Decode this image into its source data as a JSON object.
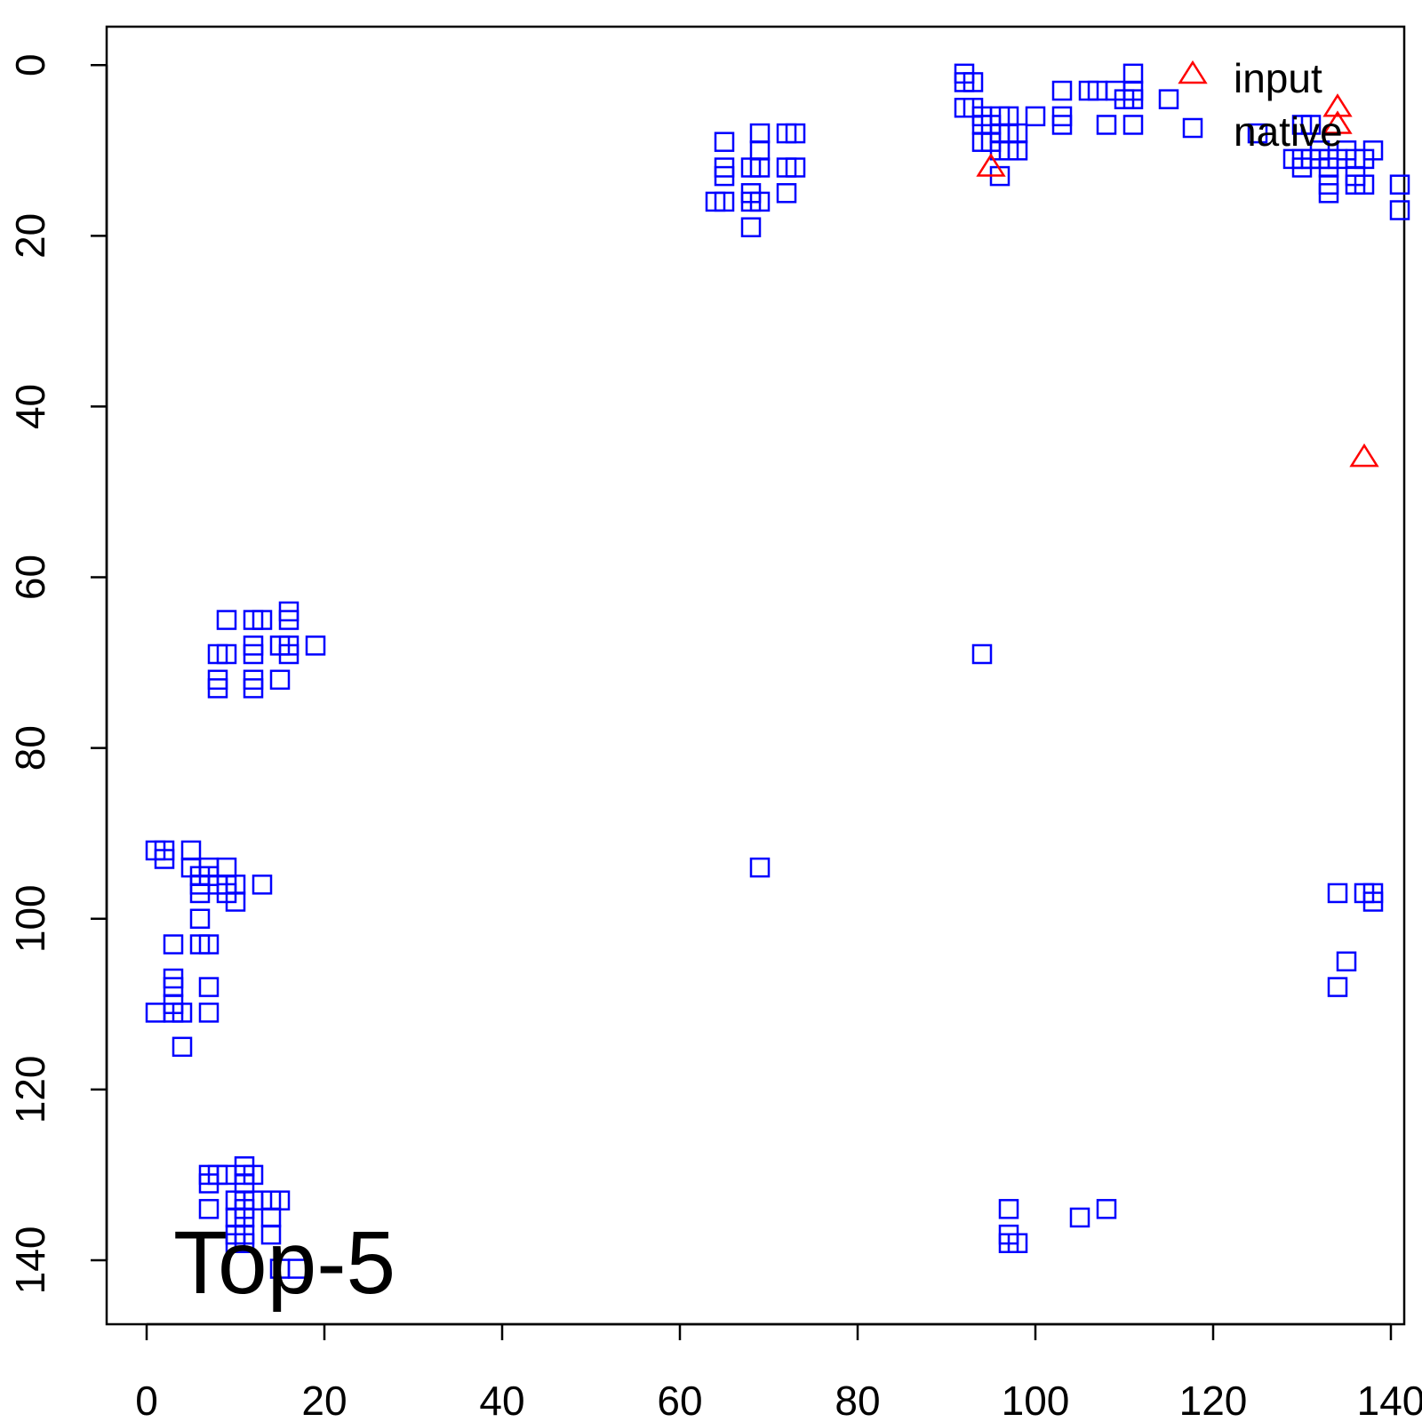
{
  "chart_data": {
    "type": "scatter",
    "annotation": "Top-5",
    "x_ticks": [
      "0",
      "20",
      "40",
      "60",
      "80",
      "100",
      "120",
      "140"
    ],
    "y_ticks": [
      "0",
      "20",
      "40",
      "60",
      "80",
      "100",
      "120",
      "140"
    ],
    "xlim": [
      -4.5,
      141.5
    ],
    "ylim": [
      147.5,
      -4.5
    ],
    "y_axis_reversed": true,
    "grid": false,
    "legend_position": "top-right",
    "series": [
      {
        "name": "input",
        "marker": "triangle",
        "color": "#ff0000",
        "points": [
          [
            134,
            5
          ],
          [
            134,
            7
          ],
          [
            95,
            12
          ],
          [
            137,
            46
          ]
        ]
      },
      {
        "name": "native",
        "marker": "square",
        "color": "#0000ff",
        "points": [
          [
            92,
            1
          ],
          [
            92,
            2
          ],
          [
            93,
            2
          ],
          [
            92,
            5
          ],
          [
            93,
            5
          ],
          [
            94,
            6
          ],
          [
            94,
            7
          ],
          [
            95,
            7
          ],
          [
            96,
            6
          ],
          [
            97,
            6
          ],
          [
            94,
            9
          ],
          [
            95,
            9
          ],
          [
            96,
            8
          ],
          [
            97,
            8
          ],
          [
            98,
            8
          ],
          [
            96,
            10
          ],
          [
            97,
            10
          ],
          [
            98,
            10
          ],
          [
            96,
            13
          ],
          [
            100,
            6
          ],
          [
            103,
            3
          ],
          [
            103,
            6
          ],
          [
            103,
            7
          ],
          [
            106,
            3
          ],
          [
            107,
            3
          ],
          [
            109,
            3
          ],
          [
            110,
            4
          ],
          [
            111,
            1
          ],
          [
            111,
            3
          ],
          [
            111,
            4
          ],
          [
            108,
            7
          ],
          [
            111,
            7
          ],
          [
            115,
            4
          ],
          [
            65,
            9
          ],
          [
            65,
            12
          ],
          [
            65,
            13
          ],
          [
            64,
            16
          ],
          [
            65,
            16
          ],
          [
            68,
            12
          ],
          [
            69,
            12
          ],
          [
            69,
            8
          ],
          [
            69,
            10
          ],
          [
            72,
            8
          ],
          [
            73,
            8
          ],
          [
            72,
            12
          ],
          [
            73,
            12
          ],
          [
            68,
            15
          ],
          [
            68,
            16
          ],
          [
            69,
            16
          ],
          [
            72,
            15
          ],
          [
            68,
            19
          ],
          [
            125,
            8
          ],
          [
            130,
            7
          ],
          [
            131,
            7
          ],
          [
            129,
            11
          ],
          [
            130,
            11
          ],
          [
            131,
            11
          ],
          [
            130,
            12
          ],
          [
            132,
            10
          ],
          [
            132,
            11
          ],
          [
            133,
            11
          ],
          [
            133,
            12
          ],
          [
            133,
            14
          ],
          [
            133,
            15
          ],
          [
            134,
            11
          ],
          [
            135,
            10
          ],
          [
            136,
            11
          ],
          [
            136,
            13
          ],
          [
            136,
            14
          ],
          [
            137,
            11
          ],
          [
            137,
            14
          ],
          [
            138,
            10
          ],
          [
            141,
            14
          ],
          [
            141,
            17
          ],
          [
            94,
            69
          ],
          [
            69,
            94
          ],
          [
            9,
            65
          ],
          [
            12,
            65
          ],
          [
            13,
            65
          ],
          [
            16,
            64
          ],
          [
            16,
            65
          ],
          [
            8,
            69
          ],
          [
            9,
            69
          ],
          [
            12,
            68
          ],
          [
            12,
            69
          ],
          [
            15,
            68
          ],
          [
            16,
            68
          ],
          [
            16,
            69
          ],
          [
            19,
            68
          ],
          [
            8,
            72
          ],
          [
            8,
            73
          ],
          [
            12,
            72
          ],
          [
            12,
            73
          ],
          [
            15,
            72
          ],
          [
            1,
            92
          ],
          [
            2,
            92
          ],
          [
            2,
            93
          ],
          [
            5,
            92
          ],
          [
            5,
            94
          ],
          [
            6,
            95
          ],
          [
            6,
            96
          ],
          [
            6,
            97
          ],
          [
            7,
            94
          ],
          [
            7,
            95
          ],
          [
            8,
            96
          ],
          [
            9,
            94
          ],
          [
            9,
            96
          ],
          [
            9,
            97
          ],
          [
            10,
            96
          ],
          [
            10,
            98
          ],
          [
            13,
            96
          ],
          [
            6,
            100
          ],
          [
            6,
            103
          ],
          [
            7,
            103
          ],
          [
            3,
            103
          ],
          [
            3,
            107
          ],
          [
            3,
            108
          ],
          [
            7,
            108
          ],
          [
            3,
            110
          ],
          [
            3,
            111
          ],
          [
            1,
            111
          ],
          [
            4,
            111
          ],
          [
            7,
            111
          ],
          [
            4,
            115
          ],
          [
            134,
            97
          ],
          [
            137,
            97
          ],
          [
            138,
            97
          ],
          [
            138,
            98
          ],
          [
            135,
            105
          ],
          [
            134,
            108
          ],
          [
            97,
            134
          ],
          [
            105,
            135
          ],
          [
            108,
            134
          ],
          [
            97,
            137
          ],
          [
            97,
            138
          ],
          [
            98,
            138
          ],
          [
            7,
            130
          ],
          [
            8,
            130
          ],
          [
            7,
            131
          ],
          [
            9,
            130
          ],
          [
            11,
            129
          ],
          [
            11,
            130
          ],
          [
            11,
            131
          ],
          [
            12,
            130
          ],
          [
            10,
            133
          ],
          [
            11,
            133
          ],
          [
            12,
            133
          ],
          [
            11,
            134
          ],
          [
            14,
            133
          ],
          [
            15,
            133
          ],
          [
            7,
            134
          ],
          [
            10,
            135
          ],
          [
            11,
            135
          ],
          [
            14,
            135
          ],
          [
            10,
            137
          ],
          [
            11,
            137
          ],
          [
            14,
            137
          ],
          [
            10,
            138
          ],
          [
            11,
            138
          ],
          [
            15,
            141
          ],
          [
            17,
            141
          ]
        ]
      }
    ]
  }
}
